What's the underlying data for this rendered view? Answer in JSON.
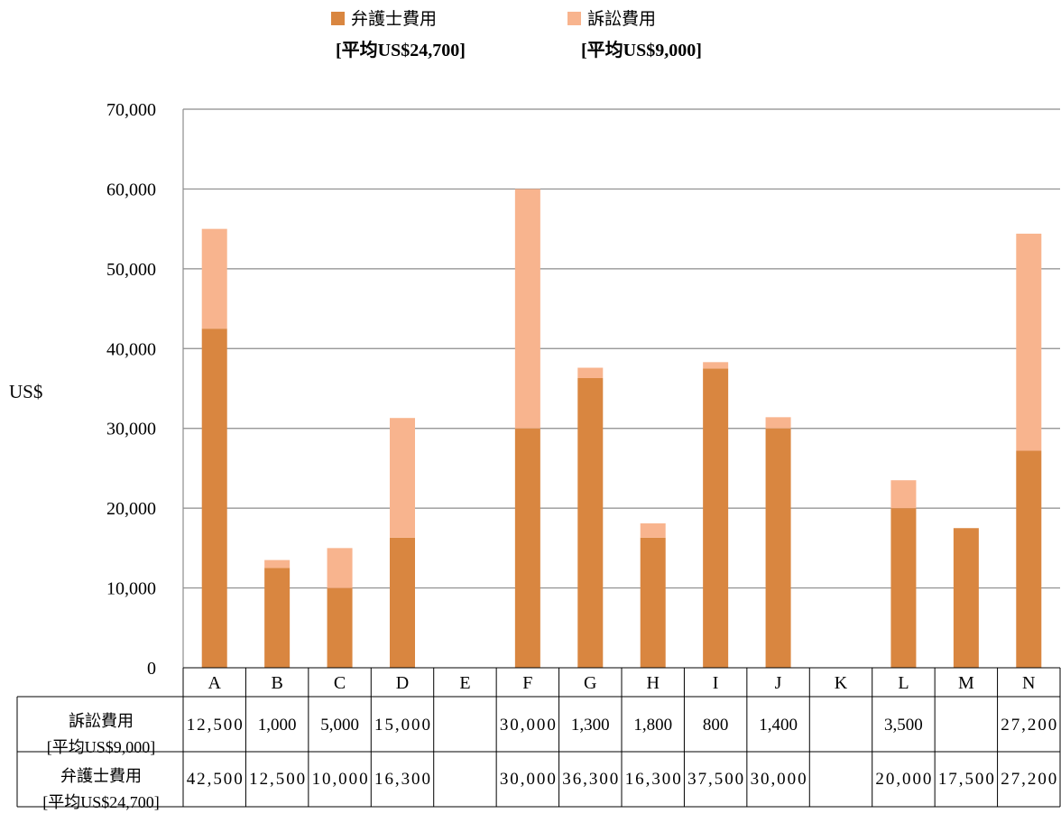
{
  "chart_data": {
    "type": "bar",
    "stacked": true,
    "ylabel": "US$",
    "ylim": [
      0,
      70000
    ],
    "yticks": [
      0,
      10000,
      20000,
      30000,
      40000,
      50000,
      60000,
      70000
    ],
    "ytick_labels": [
      "0",
      "10,000",
      "20,000",
      "30,000",
      "40,000",
      "50,000",
      "60,000",
      "70,000"
    ],
    "grid": true,
    "legend_position": "top",
    "categories": [
      "A",
      "B",
      "C",
      "D",
      "E",
      "F",
      "G",
      "H",
      "I",
      "J",
      "K",
      "L",
      "M",
      "N"
    ],
    "series": [
      {
        "name": "弁護士費用",
        "legend_sub": "[平均US$24,700]",
        "table_label_1": "弁護士費用",
        "table_label_2": "[平均US$24,700]",
        "color": "#d98640",
        "values": [
          42500,
          12500,
          10000,
          16300,
          null,
          30000,
          36300,
          16300,
          37500,
          30000,
          null,
          20000,
          17500,
          27200
        ],
        "labels": [
          "42,500",
          "12,500",
          "10,000",
          "16,300",
          "",
          "30,000",
          "36,300",
          "16,300",
          "37,500",
          "30,000",
          "",
          "20,000",
          "17,500",
          "27,200"
        ]
      },
      {
        "name": "訴訟費用",
        "legend_sub": "[平均US$9,000]",
        "table_label_1": "訴訟費用",
        "table_label_2": "[平均US$9,000]",
        "color": "#f8b48e",
        "values": [
          12500,
          1000,
          5000,
          15000,
          null,
          30000,
          1300,
          1800,
          800,
          1400,
          null,
          3500,
          null,
          27200
        ],
        "labels": [
          "12,500",
          "1,000",
          "5,000",
          "15,000",
          "",
          "30,000",
          "1,300",
          "1,800",
          "800",
          "1,400",
          "",
          "3,500",
          "",
          "27,200"
        ]
      }
    ]
  }
}
